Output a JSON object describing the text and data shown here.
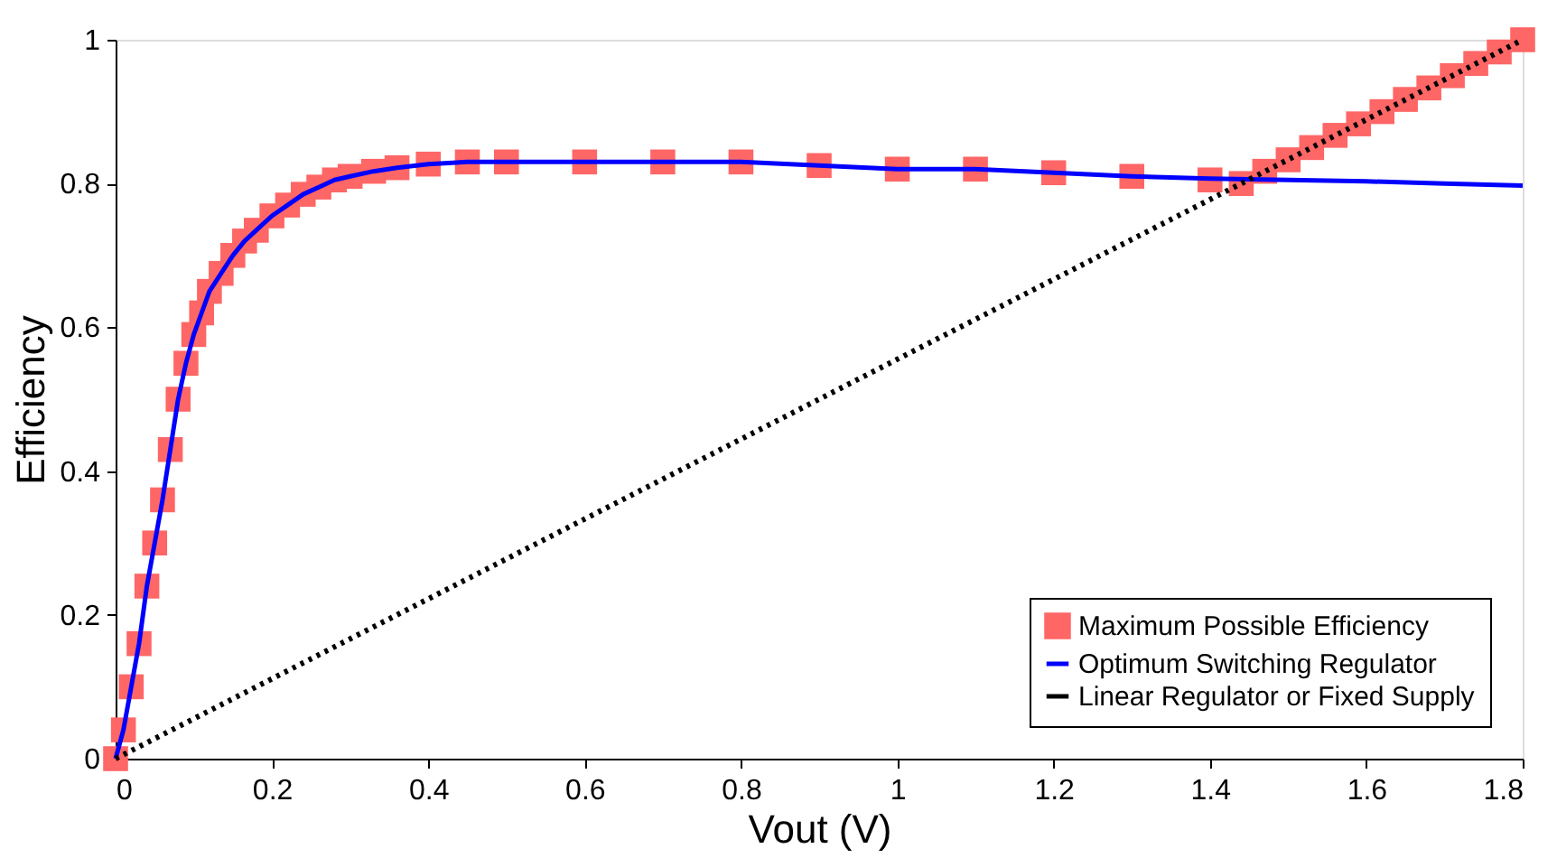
{
  "chart_data": {
    "type": "line",
    "xlabel": "Vout (V)",
    "ylabel": "Efficiency",
    "xlim": [
      0,
      1.8
    ],
    "ylim": [
      0,
      1
    ],
    "xticks": [
      0,
      0.2,
      0.4,
      0.6,
      0.8,
      1,
      1.2,
      1.4,
      1.6,
      1.8
    ],
    "yticks": [
      0,
      0.2,
      0.4,
      0.6,
      0.8,
      1
    ],
    "grid": false,
    "legend": "bottom right",
    "series": [
      {
        "name": "Maximum Possible Efficiency",
        "type": "scatter",
        "marker": "square",
        "color": "#ff6666",
        "x": [
          0,
          0.01,
          0.02,
          0.03,
          0.04,
          0.05,
          0.06,
          0.07,
          0.08,
          0.09,
          0.1,
          0.11,
          0.12,
          0.135,
          0.15,
          0.165,
          0.18,
          0.2,
          0.22,
          0.24,
          0.26,
          0.28,
          0.3,
          0.33,
          0.36,
          0.4,
          0.45,
          0.5,
          0.6,
          0.7,
          0.8,
          0.9,
          1,
          1.1,
          1.2,
          1.3,
          1.4,
          1.44,
          1.47,
          1.5,
          1.53,
          1.56,
          1.59,
          1.62,
          1.65,
          1.68,
          1.71,
          1.74,
          1.77,
          1.8
        ],
        "values": [
          0,
          0.04,
          0.1,
          0.16,
          0.24,
          0.3,
          0.36,
          0.43,
          0.5,
          0.55,
          0.59,
          0.62,
          0.65,
          0.675,
          0.7,
          0.72,
          0.735,
          0.755,
          0.77,
          0.785,
          0.795,
          0.805,
          0.81,
          0.817,
          0.822,
          0.827,
          0.83,
          0.83,
          0.83,
          0.83,
          0.83,
          0.825,
          0.82,
          0.82,
          0.815,
          0.81,
          0.805,
          0.8,
          0.817,
          0.833,
          0.85,
          0.867,
          0.883,
          0.9,
          0.917,
          0.933,
          0.95,
          0.967,
          0.983,
          1
        ]
      },
      {
        "name": "Optimum Switching Regulator",
        "type": "line",
        "line_style": "solid",
        "color": "#0000ff",
        "x": [
          0,
          0.01,
          0.02,
          0.03,
          0.04,
          0.05,
          0.06,
          0.07,
          0.08,
          0.09,
          0.1,
          0.11,
          0.12,
          0.135,
          0.15,
          0.165,
          0.18,
          0.2,
          0.22,
          0.24,
          0.26,
          0.28,
          0.3,
          0.33,
          0.36,
          0.4,
          0.45,
          0.5,
          0.6,
          0.7,
          0.8,
          0.9,
          1,
          1.1,
          1.2,
          1.3,
          1.4,
          1.5,
          1.6,
          1.7,
          1.8
        ],
        "values": [
          0,
          0.04,
          0.1,
          0.16,
          0.24,
          0.3,
          0.36,
          0.43,
          0.5,
          0.55,
          0.59,
          0.62,
          0.65,
          0.675,
          0.7,
          0.72,
          0.735,
          0.755,
          0.77,
          0.785,
          0.795,
          0.805,
          0.81,
          0.817,
          0.822,
          0.827,
          0.83,
          0.83,
          0.83,
          0.83,
          0.83,
          0.825,
          0.82,
          0.82,
          0.815,
          0.81,
          0.807,
          0.805,
          0.803,
          0.8,
          0.797
        ]
      },
      {
        "name": "Linear Regulator or Fixed Supply",
        "type": "line",
        "line_style": "dotted",
        "color": "#000000",
        "x": [
          0,
          1.8
        ],
        "values": [
          0,
          1
        ]
      }
    ]
  }
}
